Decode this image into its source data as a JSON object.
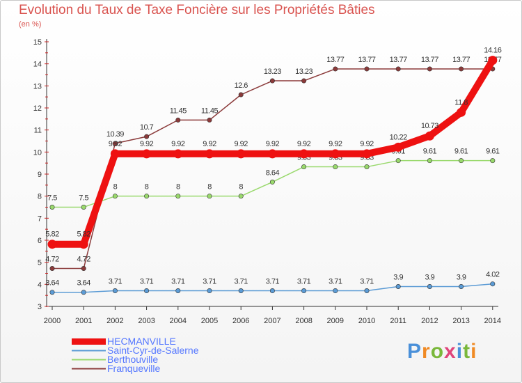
{
  "title": "Evolution du Taux de Taxe Foncière sur les Propriétés Bâties",
  "subtitle": "(en %)",
  "logo": {
    "text": "Proxiti",
    "letter_colors": [
      "#4a90d9",
      "#f08a24",
      "#7ab83b",
      "#e0457b",
      "#4a90d9",
      "#7ab83b",
      "#f08a24"
    ]
  },
  "chart_data": {
    "type": "line",
    "title": "Evolution du Taux de Taxe Foncière sur les Propriétés Bâties",
    "ylabel": "(en %)",
    "xlabel": "",
    "ylim": [
      3,
      15
    ],
    "yticks": [
      "3",
      "4",
      "5",
      "6",
      "7",
      "8",
      "9",
      "10",
      "11",
      "12",
      "13",
      "14",
      "15"
    ],
    "categories": [
      "2000",
      "2001",
      "2002",
      "2003",
      "2004",
      "2005",
      "2006",
      "2007",
      "2008",
      "2009",
      "2010",
      "2011",
      "2012",
      "2013",
      "2014"
    ],
    "series": [
      {
        "name": "Saint-Cyr-de-Salerne",
        "color": "#5b9bd5",
        "values": [
          3.64,
          3.64,
          3.71,
          3.71,
          3.71,
          3.71,
          3.71,
          3.71,
          3.71,
          3.71,
          3.71,
          3.9,
          3.9,
          3.9,
          4.02
        ],
        "labels": [
          "3.64",
          "3.64",
          "3.71",
          "3.71",
          "3.71",
          "3.71",
          "3.71",
          "3.71",
          "3.71",
          "3.71",
          "3.71",
          "3.9",
          "3.9",
          "3.9",
          "4.02"
        ]
      },
      {
        "name": "Berthouville",
        "color": "#99d96c",
        "values": [
          7.5,
          7.5,
          8,
          8,
          8,
          8,
          8,
          8.64,
          9.33,
          9.33,
          9.33,
          9.61,
          9.61,
          9.61,
          9.61
        ],
        "labels": [
          "7.5",
          "7.5",
          "8",
          "8",
          "8",
          "8",
          "8",
          "8.64",
          "9.33",
          "9.33",
          "9.33",
          "9.61",
          "9.61",
          "9.61",
          "9.61"
        ]
      },
      {
        "name": "Franqueville",
        "color": "#8b3a3a",
        "values": [
          4.72,
          4.72,
          10.39,
          10.7,
          11.45,
          11.45,
          12.6,
          13.23,
          13.23,
          13.77,
          13.77,
          13.77,
          13.77,
          13.77,
          13.77
        ],
        "labels": [
          "4.72",
          "4.72",
          "10.39",
          "10.7",
          "11.45",
          "11.45",
          "12.6",
          "13.23",
          "13.23",
          "13.77",
          "13.77",
          "13.77",
          "13.77",
          "13.77",
          "13.77"
        ]
      },
      {
        "name": "HECMANVILLE",
        "color": "#ee1111",
        "values": [
          5.82,
          5.82,
          9.92,
          9.92,
          9.92,
          9.92,
          9.92,
          9.92,
          9.92,
          9.92,
          9.92,
          10.22,
          10.73,
          11.8,
          14.16
        ],
        "labels": [
          "5.82",
          "5.82",
          "9.92",
          "9.92",
          "9.92",
          "9.92",
          "9.92",
          "9.92",
          "9.92",
          "9.92",
          "9.92",
          "10.22",
          "10.73",
          "11.8",
          "14.16"
        ]
      }
    ],
    "legend_order": [
      "HECMANVILLE",
      "Saint-Cyr-de-Salerne",
      "Berthouville",
      "Franqueville"
    ]
  }
}
